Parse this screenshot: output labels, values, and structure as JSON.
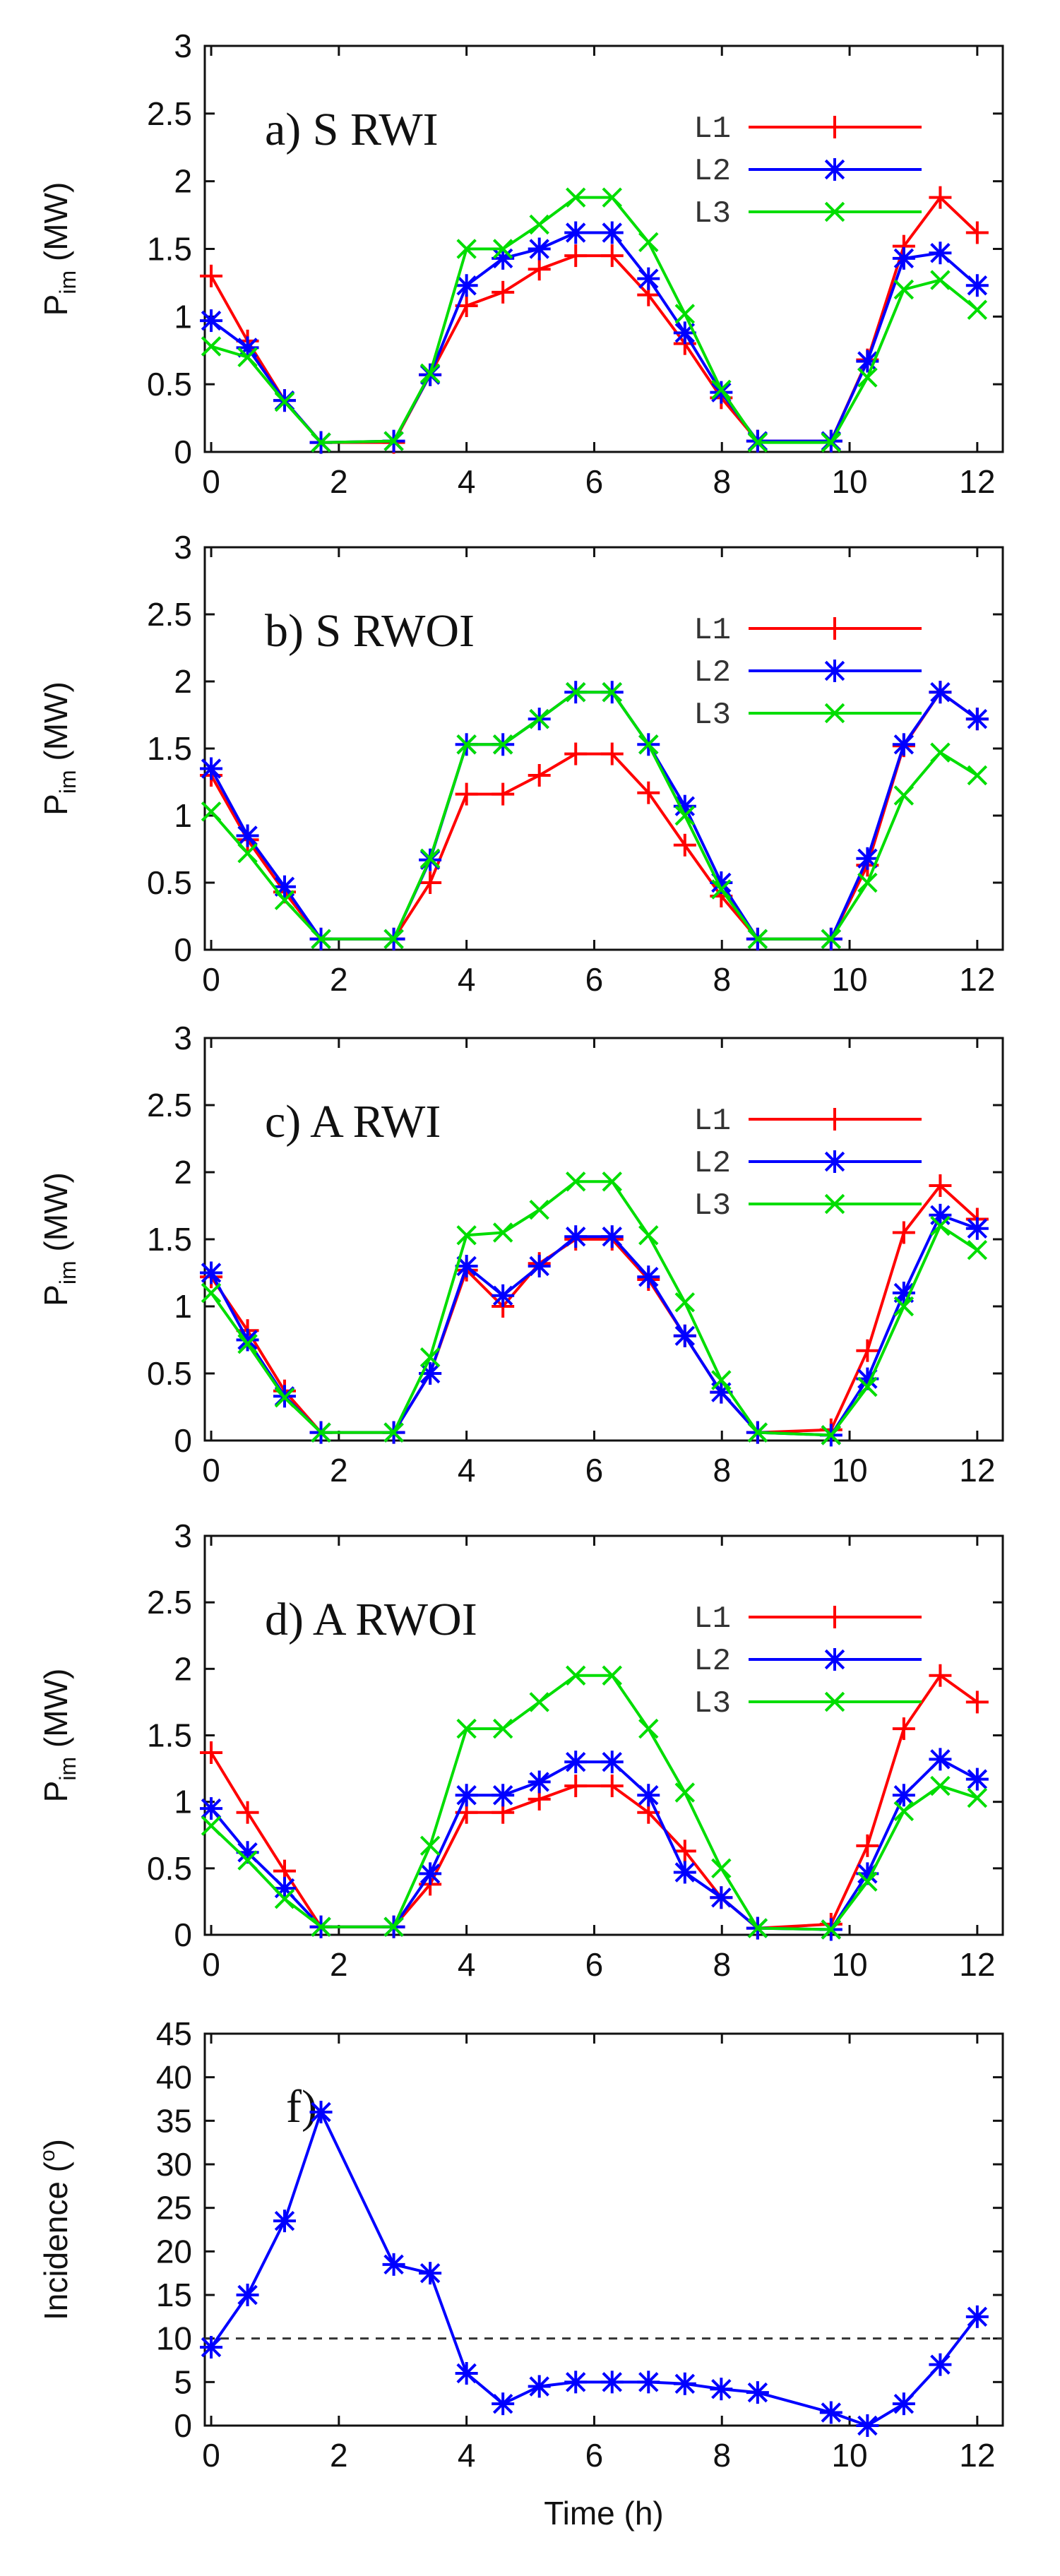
{
  "chart_data": [
    {
      "type": "line",
      "title": "a) S RWI",
      "ylabel": "P_im (MW)",
      "ylabel_main": "P",
      "ylabel_sub": "im",
      "ylabel_unit": " (MW)",
      "xlabel": "",
      "xlim": [
        -0.1,
        12.4
      ],
      "ylim": [
        0,
        3
      ],
      "xticks": [
        "0",
        "2",
        "4",
        "6",
        "8",
        "10",
        "12"
      ],
      "yticks": [
        "0",
        "0.5",
        "1",
        "1.5",
        "2",
        "2.5",
        "3"
      ],
      "legend_position": "top-right",
      "grid": false,
      "x": [
        0,
        0.57,
        1.15,
        1.72,
        2.86,
        3.43,
        4.0,
        4.57,
        5.14,
        5.71,
        6.28,
        6.85,
        7.42,
        7.99,
        8.56,
        9.71,
        10.28,
        10.85,
        11.42,
        12.0
      ],
      "series": [
        {
          "name": "L1",
          "color": "#ff0000",
          "marker": "plus",
          "values": [
            1.3,
            0.82,
            0.38,
            0.07,
            0.07,
            0.57,
            1.08,
            1.18,
            1.35,
            1.45,
            1.45,
            1.16,
            0.8,
            0.4,
            0.08,
            0.08,
            0.68,
            1.52,
            1.88,
            1.62
          ]
        },
        {
          "name": "L2",
          "color": "#0000ff",
          "marker": "star",
          "values": [
            0.97,
            0.77,
            0.38,
            0.07,
            0.08,
            0.57,
            1.23,
            1.43,
            1.5,
            1.62,
            1.62,
            1.28,
            0.88,
            0.44,
            0.08,
            0.08,
            0.67,
            1.43,
            1.47,
            1.23
          ]
        },
        {
          "name": "L3",
          "color": "#00dd00",
          "marker": "cross",
          "values": [
            0.78,
            0.7,
            0.37,
            0.07,
            0.08,
            0.58,
            1.5,
            1.5,
            1.68,
            1.88,
            1.88,
            1.55,
            1.02,
            0.46,
            0.07,
            0.07,
            0.55,
            1.2,
            1.27,
            1.05
          ]
        }
      ]
    },
    {
      "type": "line",
      "title": "b) S RWOI",
      "ylabel": "P_im (MW)",
      "ylabel_main": "P",
      "ylabel_sub": "im",
      "ylabel_unit": " (MW)",
      "xlabel": "",
      "xlim": [
        -0.1,
        12.4
      ],
      "ylim": [
        0,
        3
      ],
      "xticks": [
        "0",
        "2",
        "4",
        "6",
        "8",
        "10",
        "12"
      ],
      "yticks": [
        "0",
        "0.5",
        "1",
        "1.5",
        "2",
        "2.5",
        "3"
      ],
      "legend_position": "top-right",
      "grid": false,
      "x": [
        0,
        0.57,
        1.15,
        1.72,
        2.86,
        3.43,
        4.0,
        4.57,
        5.14,
        5.71,
        6.28,
        6.85,
        7.42,
        7.99,
        8.56,
        9.71,
        10.28,
        10.85,
        11.42,
        12.0
      ],
      "series": [
        {
          "name": "L1",
          "color": "#ff0000",
          "marker": "plus",
          "values": [
            1.3,
            0.82,
            0.43,
            0.08,
            0.08,
            0.5,
            1.16,
            1.16,
            1.3,
            1.46,
            1.46,
            1.17,
            0.78,
            0.4,
            0.08,
            0.08,
            0.63,
            1.52,
            1.92,
            1.72
          ]
        },
        {
          "name": "L2",
          "color": "#0000ff",
          "marker": "star",
          "values": [
            1.35,
            0.85,
            0.47,
            0.08,
            0.08,
            0.67,
            1.53,
            1.53,
            1.72,
            1.92,
            1.92,
            1.53,
            1.07,
            0.5,
            0.08,
            0.08,
            0.68,
            1.53,
            1.92,
            1.72
          ]
        },
        {
          "name": "L3",
          "color": "#00dd00",
          "marker": "cross",
          "values": [
            1.03,
            0.72,
            0.37,
            0.08,
            0.08,
            0.68,
            1.53,
            1.53,
            1.72,
            1.92,
            1.92,
            1.53,
            1.0,
            0.45,
            0.08,
            0.08,
            0.5,
            1.15,
            1.47,
            1.3
          ]
        }
      ]
    },
    {
      "type": "line",
      "title": "c) A RWI",
      "ylabel": "P_im (MW)",
      "ylabel_main": "P",
      "ylabel_sub": "im",
      "ylabel_unit": " (MW)",
      "xlabel": "",
      "xlim": [
        -0.1,
        12.4
      ],
      "ylim": [
        0,
        3
      ],
      "xticks": [
        "0",
        "2",
        "4",
        "6",
        "8",
        "10",
        "12"
      ],
      "yticks": [
        "0",
        "0.5",
        "1",
        "1.5",
        "2",
        "2.5",
        "3"
      ],
      "legend_position": "top-right",
      "grid": false,
      "x": [
        0,
        0.57,
        1.15,
        1.72,
        2.86,
        3.43,
        4.0,
        4.57,
        5.14,
        5.71,
        6.28,
        6.85,
        7.42,
        7.99,
        8.56,
        9.71,
        10.28,
        10.85,
        11.42,
        12.0
      ],
      "series": [
        {
          "name": "L1",
          "color": "#ff0000",
          "marker": "plus",
          "values": [
            1.22,
            0.82,
            0.37,
            0.06,
            0.06,
            0.5,
            1.27,
            1.0,
            1.32,
            1.5,
            1.5,
            1.2,
            0.78,
            0.36,
            0.06,
            0.08,
            0.67,
            1.55,
            1.9,
            1.65
          ]
        },
        {
          "name": "L2",
          "color": "#0000ff",
          "marker": "star",
          "values": [
            1.25,
            0.75,
            0.33,
            0.06,
            0.06,
            0.5,
            1.3,
            1.08,
            1.3,
            1.52,
            1.52,
            1.22,
            0.78,
            0.36,
            0.06,
            0.04,
            0.46,
            1.1,
            1.68,
            1.58
          ]
        },
        {
          "name": "L3",
          "color": "#00dd00",
          "marker": "cross",
          "values": [
            1.1,
            0.72,
            0.32,
            0.06,
            0.06,
            0.62,
            1.53,
            1.55,
            1.72,
            1.93,
            1.93,
            1.53,
            1.03,
            0.45,
            0.06,
            0.04,
            0.4,
            1.0,
            1.6,
            1.42
          ]
        }
      ]
    },
    {
      "type": "line",
      "title": "d) A RWOI",
      "ylabel": "P_im (MW)",
      "ylabel_main": "P",
      "ylabel_sub": "im",
      "ylabel_unit": " (MW)",
      "xlabel": "",
      "xlim": [
        -0.1,
        12.4
      ],
      "ylim": [
        0,
        3
      ],
      "xticks": [
        "0",
        "2",
        "4",
        "6",
        "8",
        "10",
        "12"
      ],
      "yticks": [
        "0",
        "0.5",
        "1",
        "1.5",
        "2",
        "2.5",
        "3"
      ],
      "legend_position": "top-right",
      "grid": false,
      "x": [
        0,
        0.57,
        1.15,
        1.72,
        2.86,
        3.43,
        4.0,
        4.57,
        5.14,
        5.71,
        6.28,
        6.85,
        7.42,
        7.99,
        8.56,
        9.71,
        10.28,
        10.85,
        11.42,
        12.0
      ],
      "series": [
        {
          "name": "L1",
          "color": "#ff0000",
          "marker": "plus",
          "values": [
            1.37,
            0.92,
            0.48,
            0.06,
            0.06,
            0.38,
            0.92,
            0.92,
            1.02,
            1.12,
            1.12,
            0.92,
            0.63,
            0.28,
            0.05,
            0.08,
            0.67,
            1.55,
            1.95,
            1.75
          ]
        },
        {
          "name": "L2",
          "color": "#0000ff",
          "marker": "star",
          "values": [
            0.95,
            0.62,
            0.35,
            0.06,
            0.06,
            0.46,
            1.05,
            1.05,
            1.15,
            1.3,
            1.3,
            1.05,
            0.47,
            0.28,
            0.05,
            0.04,
            0.46,
            1.05,
            1.32,
            1.17
          ]
        },
        {
          "name": "L3",
          "color": "#00dd00",
          "marker": "cross",
          "values": [
            0.82,
            0.56,
            0.27,
            0.06,
            0.06,
            0.67,
            1.55,
            1.55,
            1.75,
            1.95,
            1.95,
            1.55,
            1.07,
            0.5,
            0.05,
            0.04,
            0.4,
            0.93,
            1.12,
            1.03
          ]
        }
      ]
    },
    {
      "type": "line",
      "title": "f)",
      "ylabel": "Incidence (°)",
      "ylabel_main": "Incidence (",
      "ylabel_sup": "o",
      "ylabel_unit": ")",
      "xlabel": "Time (h)",
      "xlim": [
        -0.1,
        12.4
      ],
      "ylim": [
        0,
        45
      ],
      "xticks": [
        "0",
        "2",
        "4",
        "6",
        "8",
        "10",
        "12"
      ],
      "yticks": [
        "0",
        "5",
        "10",
        "15",
        "20",
        "25",
        "30",
        "35",
        "40",
        "45"
      ],
      "grid": false,
      "reference_line": {
        "y": 10,
        "style": "dashed",
        "color": "#333333"
      },
      "x": [
        0,
        0.57,
        1.15,
        1.72,
        2.86,
        3.43,
        4.0,
        4.57,
        5.14,
        5.71,
        6.28,
        6.85,
        7.42,
        7.99,
        8.56,
        9.71,
        10.28,
        10.85,
        11.42,
        12.0
      ],
      "series": [
        {
          "name": "",
          "color": "#0000ff",
          "marker": "star",
          "values": [
            9,
            15,
            23.5,
            36,
            18.5,
            17.5,
            6,
            2.5,
            4.5,
            5,
            5,
            5,
            4.8,
            4.2,
            3.8,
            1.5,
            0,
            2.5,
            7,
            12.5
          ]
        }
      ]
    }
  ]
}
